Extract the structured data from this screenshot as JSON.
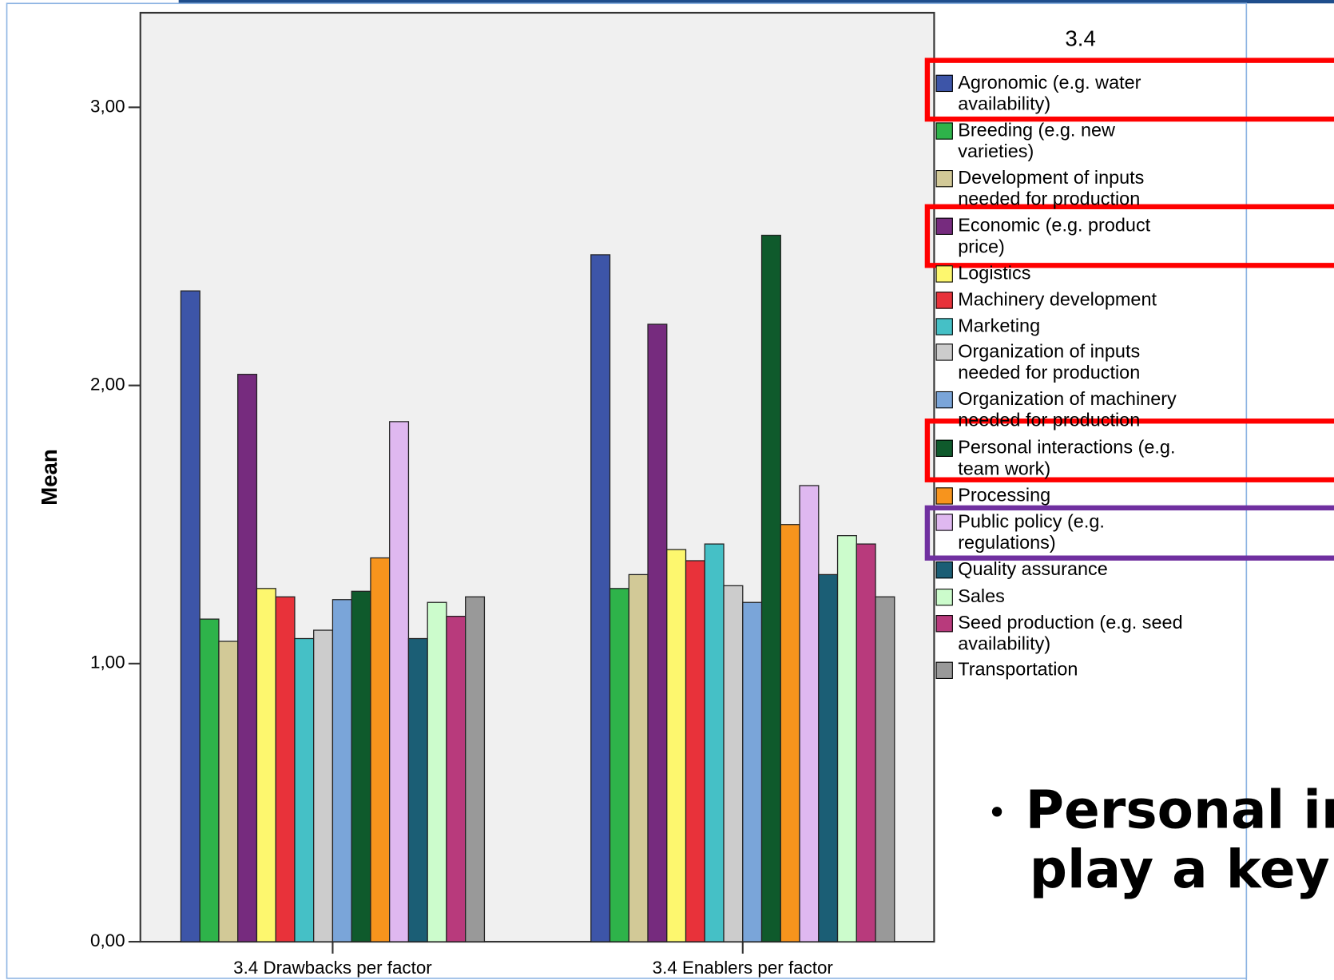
{
  "chart_data": {
    "type": "bar",
    "legend_title": "3.4",
    "y_label": "Mean",
    "categories": [
      "3.4 Drawbacks per factor",
      "3.4 Enablers per factor"
    ],
    "ylim": [
      0,
      3.34
    ],
    "yticks": [
      {
        "value": 0,
        "label": "0,00"
      },
      {
        "value": 1,
        "label": "1,00"
      },
      {
        "value": 2,
        "label": "2,00"
      },
      {
        "value": 3,
        "label": "3,00"
      }
    ],
    "series": [
      {
        "name": "Agronomic (e.g. water availability)",
        "color": "#3d55a8",
        "values": [
          2.34,
          2.47
        ]
      },
      {
        "name": "Breeding (e.g. new varieties)",
        "color": "#2eb34a",
        "values": [
          1.16,
          1.27
        ]
      },
      {
        "name": "Development of inputs needed for production",
        "color": "#d2c997",
        "values": [
          1.08,
          1.32
        ]
      },
      {
        "name": "Economic (e.g. product price)",
        "color": "#762b7e",
        "values": [
          2.04,
          2.22
        ]
      },
      {
        "name": "Logistics",
        "color": "#fdf76e",
        "values": [
          1.27,
          1.41
        ]
      },
      {
        "name": "Machinery development",
        "color": "#e8323a",
        "values": [
          1.24,
          1.37
        ]
      },
      {
        "name": "Marketing",
        "color": "#45c0c6",
        "values": [
          1.09,
          1.43
        ]
      },
      {
        "name": "Organization of inputs needed for production",
        "color": "#cccccc",
        "values": [
          1.12,
          1.28
        ]
      },
      {
        "name": "Organization of machinery needed for production",
        "color": "#7aa5d9",
        "values": [
          1.23,
          1.22
        ]
      },
      {
        "name": "Personal interactions (e.g. team work)",
        "color": "#0f5a2c",
        "values": [
          1.26,
          2.54
        ]
      },
      {
        "name": "Processing",
        "color": "#f7941d",
        "values": [
          1.38,
          1.5
        ]
      },
      {
        "name": "Public policy (e.g. regulations)",
        "color": "#dfb8f0",
        "values": [
          1.87,
          1.64
        ]
      },
      {
        "name": "Quality assurance",
        "color": "#1b5e75",
        "values": [
          1.09,
          1.32
        ]
      },
      {
        "name": "Sales",
        "color": "#ccfccc",
        "values": [
          1.22,
          1.46
        ]
      },
      {
        "name": "Seed production (e.g. seed availability)",
        "color": "#b83a7c",
        "values": [
          1.17,
          1.43
        ]
      },
      {
        "name": "Transportation",
        "color": "#999999",
        "values": [
          1.24,
          1.24
        ]
      }
    ]
  },
  "slide_text": [
    "Personal in",
    "play a key"
  ]
}
